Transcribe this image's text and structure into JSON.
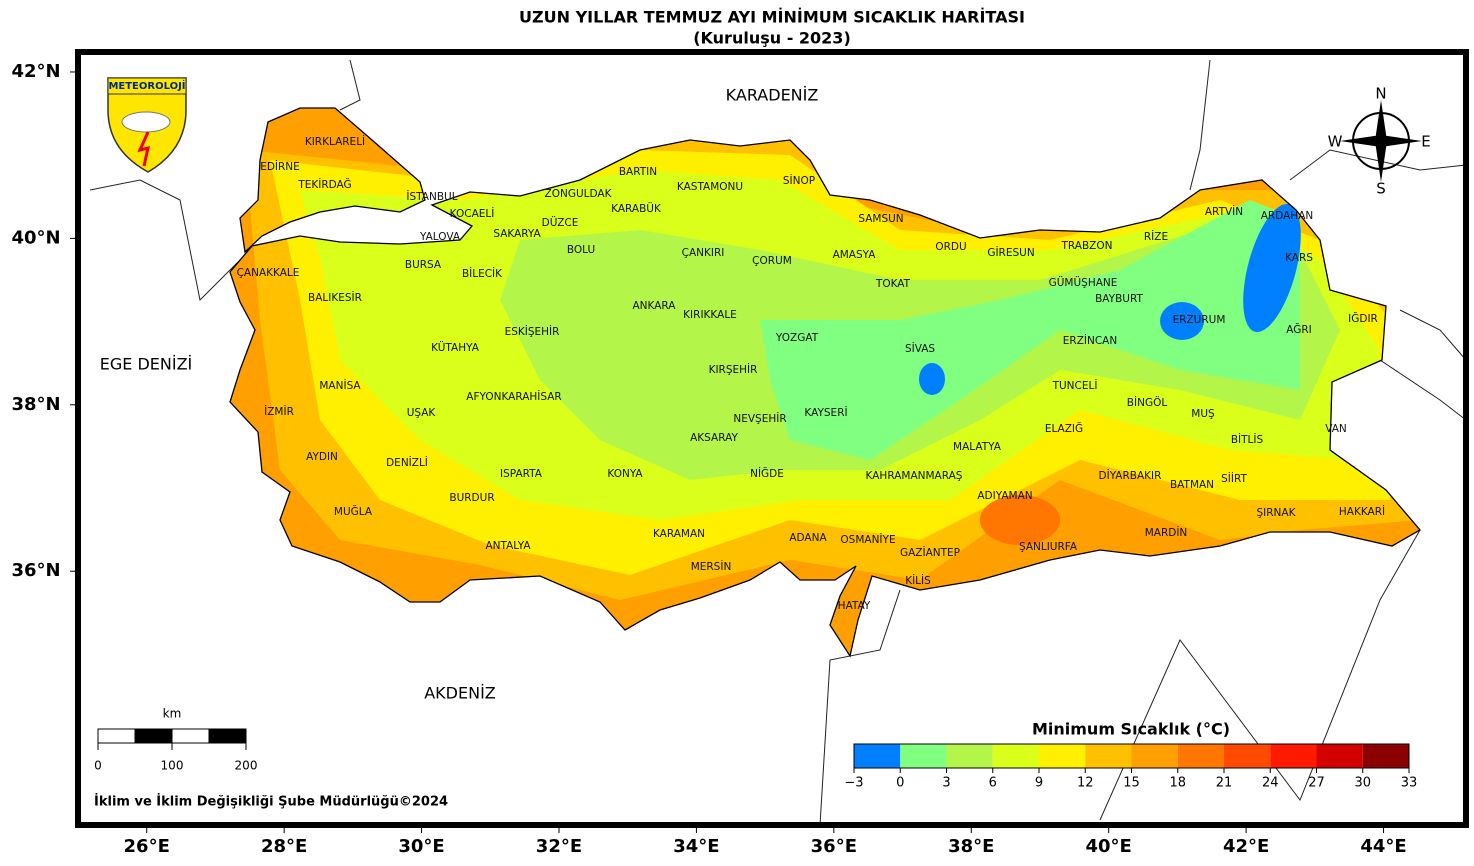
{
  "header": {
    "title": "UZUN YILLAR TEMMUZ AYI MİNİMUM SICAKLIK HARİTASI",
    "subtitle": "(Kuruluşu - 2023)"
  },
  "map": {
    "xlim": [
      25,
      45.2
    ],
    "ylim": [
      32.95,
      42.24
    ],
    "xticks": [
      {
        "value": 26,
        "label": "26°E"
      },
      {
        "value": 28,
        "label": "28°E"
      },
      {
        "value": 30,
        "label": "30°E"
      },
      {
        "value": 32,
        "label": "32°E"
      },
      {
        "value": 34,
        "label": "34°E"
      },
      {
        "value": 36,
        "label": "36°E"
      },
      {
        "value": 38,
        "label": "38°E"
      },
      {
        "value": 40,
        "label": "40°E"
      },
      {
        "value": 42,
        "label": "42°E"
      },
      {
        "value": 44,
        "label": "44°E"
      }
    ],
    "yticks": [
      {
        "value": 42,
        "label": "42°N"
      },
      {
        "value": 40,
        "label": "40°N"
      },
      {
        "value": 38,
        "label": "38°N"
      },
      {
        "value": 36,
        "label": "36°N"
      }
    ],
    "seas": [
      "KARADENİZ",
      "EGE DENİZİ",
      "AKDENİZ"
    ],
    "provinces": [
      "KIRKLARELİ",
      "EDİRNE",
      "TEKİRDAĞ",
      "İSTANBUL",
      "KOCAELİ",
      "YALOVA",
      "SAKARYA",
      "ZONGULDAK",
      "BARTIN",
      "KARABÜK",
      "DÜZCE",
      "BOLU",
      "KASTAMONU",
      "SİNOP",
      "SAMSUN",
      "ÇANKIRI",
      "ÇORUM",
      "AMASYA",
      "ORDU",
      "GİRESUN",
      "TRABZON",
      "RİZE",
      "ARTVİN",
      "ARDAHAN",
      "KARS",
      "TOKAT",
      "GÜMÜŞHANE",
      "BAYBURT",
      "ERZURUM",
      "AĞRI",
      "IĞDIR",
      "ÇANAKKALE",
      "BURSA",
      "BİLECİK",
      "BALIKESİR",
      "ANKARA",
      "KIRIKKALE",
      "YOZGAT",
      "SİVAS",
      "ERZİNCAN",
      "ESKİŞEHİR",
      "KÜTAHYA",
      "TUNCELİ",
      "MANİSA",
      "AFYONKARAHİSAR",
      "KIRŞEHİR",
      "BİNGÖL",
      "MUŞ",
      "VAN",
      "İZMİR",
      "UŞAK",
      "NEVŞEHİR",
      "KAYSERİ",
      "ELAZIĞ",
      "BİTLİS",
      "AKSARAY",
      "MALATYA",
      "AYDIN",
      "DENİZLİ",
      "ISPARTA",
      "KONYA",
      "NİĞDE",
      "KAHRAMANMARAŞ",
      "DİYARBAKIR",
      "SİİRT",
      "BATMAN",
      "BURDUR",
      "ADIYAMAN",
      "MUĞLA",
      "ŞIRNAK",
      "HAKKARİ",
      "KARAMAN",
      "ADANA",
      "OSMANİYE",
      "MARDİN",
      "ANTALYA",
      "ŞANLIURFA",
      "GAZİANTEP",
      "MERSİN",
      "KİLİS",
      "HATAY"
    ]
  },
  "logo": "METEOROLOJİ",
  "compass": {
    "n": "N",
    "e": "E",
    "s": "S",
    "w": "W"
  },
  "scale_bar": {
    "unit": "km",
    "ticks": [
      0,
      100,
      200
    ]
  },
  "colorbar": {
    "title": "Minimum Sıcaklık (°C)",
    "ticks": [
      {
        "value": -3,
        "label": "−3"
      },
      0,
      3,
      6,
      9,
      12,
      15,
      18,
      21,
      24,
      27,
      30,
      33
    ],
    "colors": [
      "#0080ff",
      "#80ff80",
      "#b4f54a",
      "#d9ff1a",
      "#fff000",
      "#ffc000",
      "#ff9f00",
      "#ff7600",
      "#ff4a00",
      "#ff1a00",
      "#d40000",
      "#8b0000"
    ]
  },
  "footer": "İklim ve İklim Değişikliği Şube Müdürlüğü©2024"
}
